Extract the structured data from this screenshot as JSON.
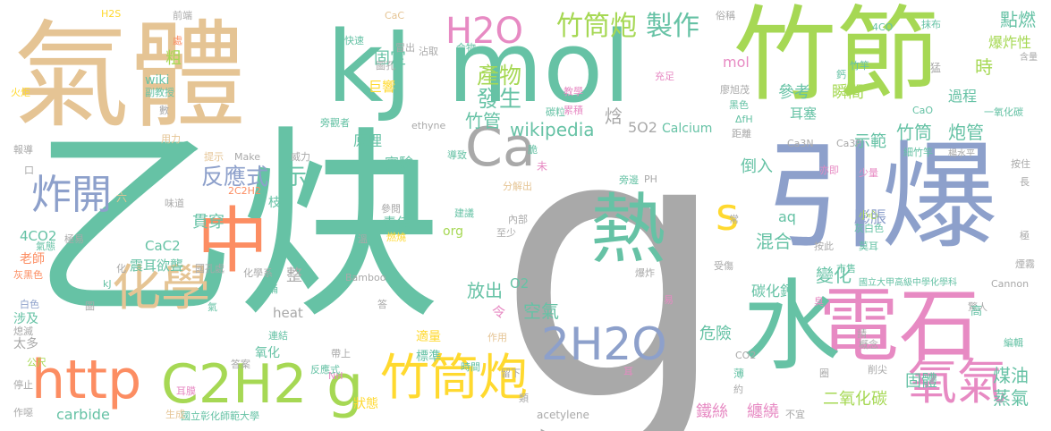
{
  "palette": {
    "gray": "#a9a9a9",
    "teal": "#66c2a5",
    "tan": "#e5c494",
    "blue": "#8da0cb",
    "lime": "#a6d854",
    "orange": "#fc8d62",
    "pink": "#e78ac3",
    "yellow": "#ffd92f"
  },
  "words": [
    {
      "text": "g",
      "color": "gray"
    },
    {
      "text": "乙炔",
      "color": "teal"
    },
    {
      "text": "氣體",
      "color": "tan"
    },
    {
      "text": "mol",
      "color": "teal"
    },
    {
      "text": "竹節",
      "color": "lime"
    },
    {
      "text": "kJ",
      "color": "teal"
    },
    {
      "text": "引爆",
      "color": "blue"
    },
    {
      "text": "電石",
      "color": "pink"
    },
    {
      "text": "水",
      "color": "teal"
    },
    {
      "text": "熱",
      "color": "teal"
    },
    {
      "text": "中",
      "color": "orange"
    },
    {
      "text": "http",
      "color": "orange"
    },
    {
      "text": "C2H2",
      "color": "lime"
    },
    {
      "text": "竹筒炮",
      "color": "yellow"
    },
    {
      "text": "氧氣",
      "color": "pink"
    },
    {
      "text": "H2O",
      "color": "pink"
    },
    {
      "text": "Ca",
      "color": "gray"
    },
    {
      "text": "化學",
      "color": "tan"
    },
    {
      "text": "2H2O",
      "color": "blue"
    },
    {
      "text": "炸開",
      "color": "blue"
    },
    {
      "text": "g",
      "color": "lime"
    },
    {
      "text": "s",
      "color": "yellow"
    },
    {
      "text": "竹筒炮",
      "color": "lime"
    },
    {
      "text": "製作",
      "color": "teal"
    },
    {
      "text": "反應式",
      "color": "blue"
    },
    {
      "text": "示",
      "color": "teal"
    },
    {
      "text": "產物",
      "color": "lime"
    },
    {
      "text": "發生",
      "color": "teal"
    },
    {
      "text": "竹管",
      "color": "teal"
    },
    {
      "text": "wikipedia",
      "color": "teal"
    },
    {
      "text": "竹筒",
      "color": "teal"
    },
    {
      "text": "炮管",
      "color": "teal"
    },
    {
      "text": "固定",
      "color": "teal"
    },
    {
      "text": "粗",
      "color": "lime"
    },
    {
      "text": "mol",
      "color": "pink"
    },
    {
      "text": "放出",
      "color": "teal"
    },
    {
      "text": "空氣",
      "color": "teal"
    },
    {
      "text": "混合",
      "color": "teal"
    },
    {
      "text": "變化",
      "color": "teal"
    },
    {
      "text": "膨脹",
      "color": "blue"
    },
    {
      "text": "碳化鈣",
      "color": "teal"
    },
    {
      "text": "危險",
      "color": "teal"
    },
    {
      "text": "點燃",
      "color": "teal"
    },
    {
      "text": "爆炸性",
      "color": "lime"
    },
    {
      "text": "時",
      "color": "lime"
    },
    {
      "text": "瞬間",
      "color": "lime"
    },
    {
      "text": "過程",
      "color": "teal"
    },
    {
      "text": "參考",
      "color": "teal"
    },
    {
      "text": "耳塞",
      "color": "teal"
    },
    {
      "text": "示範",
      "color": "teal"
    },
    {
      "text": "倒入",
      "color": "teal"
    },
    {
      "text": "二氧化碳",
      "color": "lime"
    },
    {
      "text": "固體",
      "color": "teal"
    },
    {
      "text": "煤油",
      "color": "teal"
    },
    {
      "text": "蒸氣",
      "color": "teal"
    },
    {
      "text": "鐵絲",
      "color": "pink"
    },
    {
      "text": "纏繞",
      "color": "pink"
    },
    {
      "text": "Calcium",
      "color": "teal"
    },
    {
      "text": "5O2",
      "color": "gray"
    },
    {
      "text": "焓",
      "color": "gray"
    },
    {
      "text": "原理",
      "color": "teal"
    },
    {
      "text": "實驗",
      "color": "teal"
    },
    {
      "text": "責任",
      "color": "teal"
    },
    {
      "text": "貫穿",
      "color": "teal"
    },
    {
      "text": "震耳欲聾",
      "color": "teal"
    },
    {
      "text": "CaC2",
      "color": "teal"
    },
    {
      "text": "4CO2",
      "color": "teal"
    },
    {
      "text": "老師",
      "color": "orange"
    },
    {
      "text": "整",
      "color": "gray"
    },
    {
      "text": "令",
      "color": "pink"
    },
    {
      "text": "O2",
      "color": "teal"
    },
    {
      "text": "適量",
      "color": "yellow"
    },
    {
      "text": "標準",
      "color": "teal"
    },
    {
      "text": "氧化",
      "color": "teal"
    },
    {
      "text": "heat",
      "color": "gray"
    },
    {
      "text": "carbide",
      "color": "teal"
    },
    {
      "text": "狀態",
      "color": "yellow"
    },
    {
      "text": "aq",
      "color": "teal"
    },
    {
      "text": "org",
      "color": "lime"
    },
    {
      "text": "wiki",
      "color": "teal"
    },
    {
      "text": "巨響",
      "color": "yellow"
    },
    {
      "text": "枝",
      "color": "teal"
    },
    {
      "text": "涉及",
      "color": "teal"
    },
    {
      "text": "太多",
      "color": "gray"
    },
    {
      "text": "acetylene",
      "color": "gray"
    },
    {
      "text": "國立彰化師範大學",
      "color": "teal"
    },
    {
      "text": "國立大甲高級中學化學科",
      "color": "teal"
    },
    {
      "text": "Cannon",
      "color": "gray"
    },
    {
      "text": "Bamboo",
      "color": "gray"
    },
    {
      "text": "ethyne",
      "color": "gray"
    },
    {
      "text": "Make",
      "color": "gray"
    },
    {
      "text": "2C2H2",
      "color": "orange"
    },
    {
      "text": "CaC",
      "color": "tan"
    },
    {
      "text": "H2S",
      "color": "yellow"
    },
    {
      "text": "4CO",
      "color": "teal"
    },
    {
      "text": "前端",
      "color": "gray"
    },
    {
      "text": "俗稱",
      "color": "gray"
    },
    {
      "text": "抹布",
      "color": "teal"
    },
    {
      "text": "含量",
      "color": "gray"
    },
    {
      "text": "一氧化碳",
      "color": "teal"
    },
    {
      "text": "細竹竿",
      "color": "teal"
    },
    {
      "text": "楊水平",
      "color": "gray"
    },
    {
      "text": "Ca3N",
      "color": "gray"
    },
    {
      "text": "Ca3P",
      "color": "gray"
    },
    {
      "text": "CaO",
      "color": "teal"
    },
    {
      "text": "ΔfH",
      "color": "teal"
    },
    {
      "text": "CO2",
      "color": "gray"
    },
    {
      "text": "PH",
      "color": "gray"
    },
    {
      "text": "kJ",
      "color": "teal"
    },
    {
      "text": "NH",
      "color": "pink"
    },
    {
      "text": "火炬",
      "color": "yellow"
    },
    {
      "text": "副教授",
      "color": "teal"
    },
    {
      "text": "威力",
      "color": "gray"
    },
    {
      "text": "用力",
      "color": "tan"
    },
    {
      "text": "提示",
      "color": "tan"
    },
    {
      "text": "旁觀者",
      "color": "teal"
    },
    {
      "text": "報導",
      "color": "gray"
    },
    {
      "text": "數",
      "color": "gray"
    },
    {
      "text": "六",
      "color": "tan"
    },
    {
      "text": "味道",
      "color": "gray"
    },
    {
      "text": "極易",
      "color": "gray"
    },
    {
      "text": "氣態",
      "color": "teal"
    },
    {
      "text": "灰黑色",
      "color": "orange"
    },
    {
      "text": "白色",
      "color": "blue"
    },
    {
      "text": "熄滅",
      "color": "gray"
    },
    {
      "text": "公尺",
      "color": "lime"
    },
    {
      "text": "停止",
      "color": "gray"
    },
    {
      "text": "耳膜",
      "color": "pink"
    },
    {
      "text": "作噁",
      "color": "gray"
    },
    {
      "text": "生成",
      "color": "tan"
    },
    {
      "text": "答案",
      "color": "gray"
    },
    {
      "text": "連結",
      "color": "teal"
    },
    {
      "text": "反應式",
      "color": "teal"
    },
    {
      "text": "時間",
      "color": "teal"
    },
    {
      "text": "留下",
      "color": "gray"
    },
    {
      "text": "帶上",
      "color": "gray"
    },
    {
      "text": "作用",
      "color": "tan"
    },
    {
      "text": "易",
      "color": "pink"
    },
    {
      "text": "爆炸",
      "color": "gray"
    },
    {
      "text": "答",
      "color": "gray"
    },
    {
      "text": "化學系",
      "color": "gray"
    },
    {
      "text": "國孔處",
      "color": "gray"
    },
    {
      "text": "受傷",
      "color": "gray"
    },
    {
      "text": "按此",
      "color": "gray"
    },
    {
      "text": "市售",
      "color": "teal"
    },
    {
      "text": "莫耳",
      "color": "teal"
    },
    {
      "text": "灰白色",
      "color": "teal"
    },
    {
      "text": "小心",
      "color": "lime"
    },
    {
      "text": "少量",
      "color": "pink"
    },
    {
      "text": "按住",
      "color": "gray"
    },
    {
      "text": "長",
      "color": "gray"
    },
    {
      "text": "煙霧",
      "color": "gray"
    },
    {
      "text": "驚人",
      "color": "gray"
    },
    {
      "text": "編輯",
      "color": "teal"
    },
    {
      "text": "高",
      "color": "teal"
    },
    {
      "text": "概念",
      "color": "gray"
    },
    {
      "text": "削尖",
      "color": "gray"
    },
    {
      "text": "薄",
      "color": "teal"
    },
    {
      "text": "約",
      "color": "gray"
    },
    {
      "text": "不宜",
      "color": "gray"
    },
    {
      "text": "亦即",
      "color": "pink"
    },
    {
      "text": "旁邊",
      "color": "teal"
    },
    {
      "text": "建議",
      "color": "teal"
    },
    {
      "text": "內部",
      "color": "gray"
    },
    {
      "text": "至少",
      "color": "gray"
    },
    {
      "text": "燃燒",
      "color": "yellow"
    },
    {
      "text": "參閱",
      "color": "gray"
    },
    {
      "text": "導致",
      "color": "teal"
    },
    {
      "text": "未",
      "color": "pink"
    },
    {
      "text": "分解出",
      "color": "tan"
    },
    {
      "text": "脆",
      "color": "teal"
    },
    {
      "text": "累積",
      "color": "pink"
    },
    {
      "text": "碳粒",
      "color": "teal"
    },
    {
      "text": "教學",
      "color": "pink"
    },
    {
      "text": "合物",
      "color": "teal"
    },
    {
      "text": "沾取",
      "color": "gray"
    },
    {
      "text": "冒出",
      "color": "gray"
    },
    {
      "text": "圖孔",
      "color": "gray"
    },
    {
      "text": "快速",
      "color": "teal"
    },
    {
      "text": "充足",
      "color": "pink"
    },
    {
      "text": "廖旭茂",
      "color": "gray"
    },
    {
      "text": "黑色",
      "color": "teal"
    },
    {
      "text": "距離",
      "color": "gray"
    },
    {
      "text": "猛",
      "color": "gray"
    },
    {
      "text": "常",
      "color": "gray"
    },
    {
      "text": "竹竿",
      "color": "teal"
    },
    {
      "text": "鈣",
      "color": "teal"
    },
    {
      "text": "耳",
      "color": "pink"
    },
    {
      "text": "類",
      "color": "gray"
    },
    {
      "text": "請",
      "color": "gray"
    },
    {
      "text": "臭",
      "color": "pink"
    },
    {
      "text": "圈",
      "color": "gray"
    },
    {
      "text": "氣",
      "color": "teal"
    },
    {
      "text": "溫",
      "color": "gray"
    },
    {
      "text": "化",
      "color": "gray"
    },
    {
      "text": "處",
      "color": "orange"
    },
    {
      "text": "口",
      "color": "gray"
    },
    {
      "text": "桶",
      "color": "teal"
    },
    {
      "text": "圖",
      "color": "gray"
    },
    {
      "text": "極",
      "color": "gray"
    }
  ]
}
